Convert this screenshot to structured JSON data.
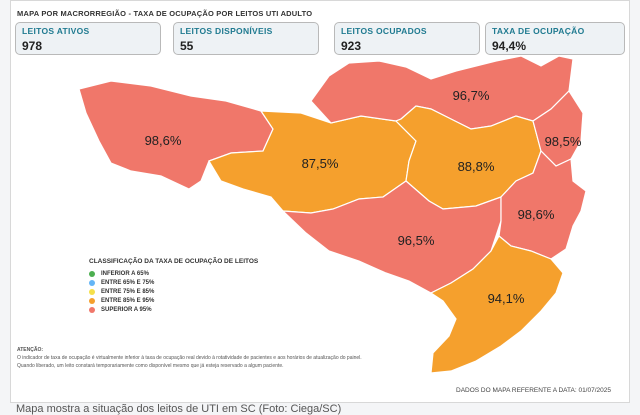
{
  "title": "MAPA POR MACRORREGIÃO - TAXA DE OCUPAÇÃO POR LEITOS UTI ADULTO",
  "kpis": [
    {
      "label": "LEITOS ATIVOS",
      "value": "978"
    },
    {
      "label": "LEITOS DISPONÍVEIS",
      "value": "55"
    },
    {
      "label": "LEITOS OCUPADOS",
      "value": "923"
    },
    {
      "label": "TAXA DE OCUPAÇÃO",
      "value": "94,4%"
    }
  ],
  "regions": [
    {
      "label": "98,6%",
      "color": "#f0776a"
    },
    {
      "label": "87,5%",
      "color": "#f5a02d"
    },
    {
      "label": "96,7%",
      "color": "#f0776a"
    },
    {
      "label": "88,8%",
      "color": "#f5a02d"
    },
    {
      "label": "98,5%",
      "color": "#f0776a"
    },
    {
      "label": "96,5%",
      "color": "#f0776a"
    },
    {
      "label": "98,6%",
      "color": "#f0776a"
    },
    {
      "label": "94,1%",
      "color": "#f5a02d"
    }
  ],
  "legend": {
    "title": "CLASSIFICAÇÃO DA TAXA DE OCUPAÇÃO DE LEITOS",
    "items": [
      {
        "label": "INFERIOR A 65%",
        "color": "#4caf50"
      },
      {
        "label": "ENTRE 65% E 75%",
        "color": "#64b5f6"
      },
      {
        "label": "ENTRE 75% E 85%",
        "color": "#f5e04a"
      },
      {
        "label": "ENTRE 85% E 95%",
        "color": "#f5a02d"
      },
      {
        "label": "SUPERIOR A 95%",
        "color": "#f0776a"
      }
    ]
  },
  "note": {
    "header": "ATENÇÃO:",
    "line1": "O indicador de taxa de ocupação é virtualmente inferior à taxa de ocupação real devido à rotatividade de pacientes e aos horários de atualização do painel.",
    "line2": "Quando liberado, um leito constará temporariamente como disponível mesmo que já esteja reservado a algum paciente."
  },
  "date_note": "DADOS DO MAPA REFERENTE A DATA: 01/07/2025",
  "caption": "Mapa mostra a situação dos leitos de UTI em SC (Foto: Ciega/SC)"
}
